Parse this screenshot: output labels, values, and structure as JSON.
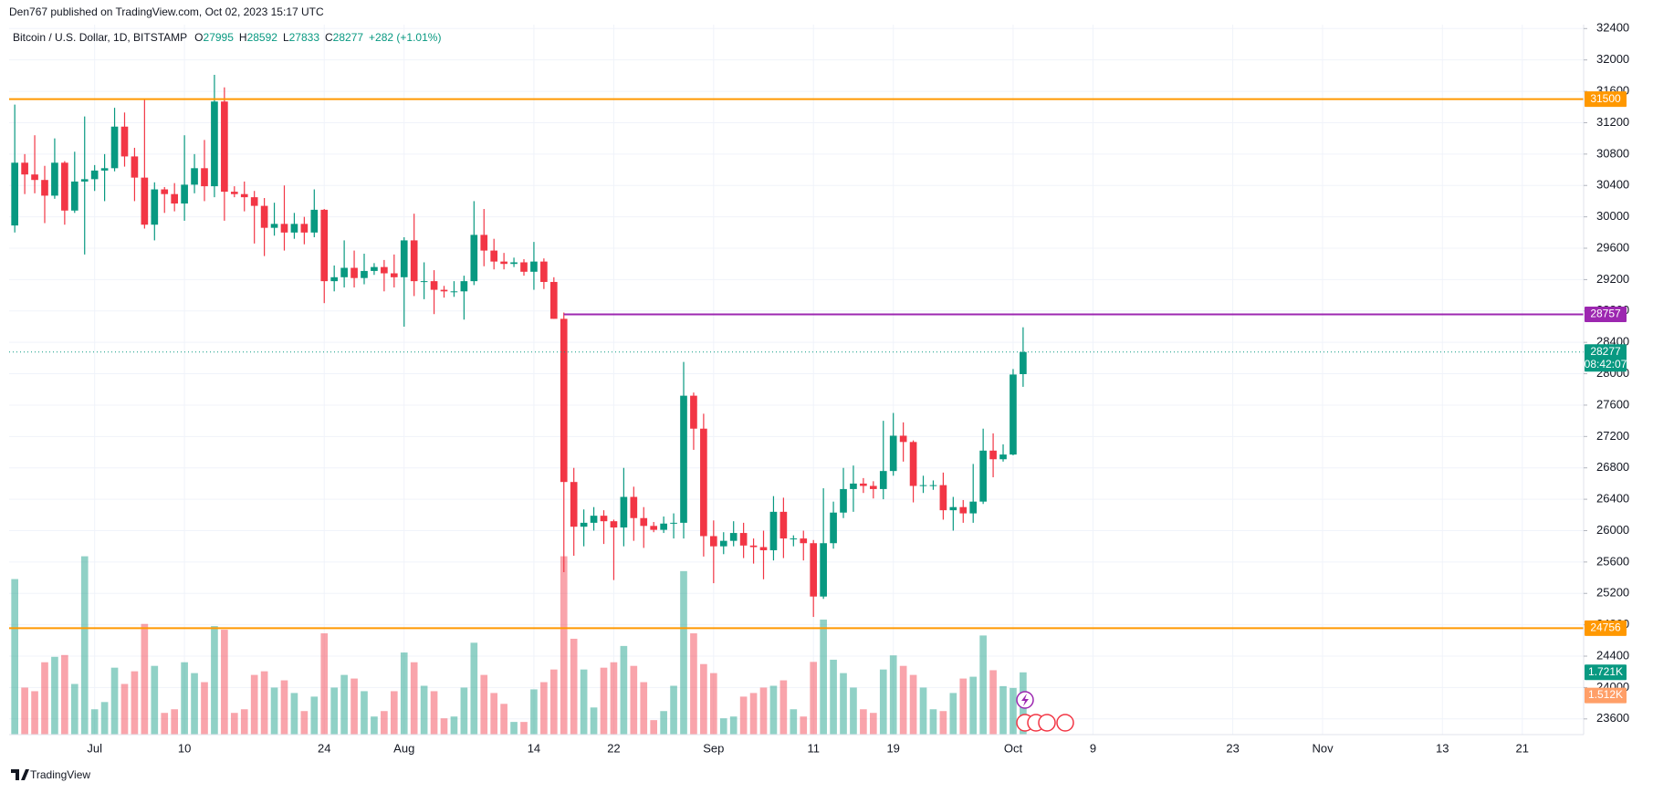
{
  "header": {
    "publisher": "Den767 published on TradingView.com, Oct 02, 2023 15:17 UTC"
  },
  "footer": {
    "brand": "TradingView"
  },
  "chart_data": {
    "type": "candlestick",
    "title": "Bitcoin / U.S. Dollar, 1D, BITSTAMP",
    "ohlc": [
      {
        "label": "O",
        "value": 27995
      },
      {
        "label": "H",
        "value": 28592
      },
      {
        "label": "L",
        "value": 27833
      },
      {
        "label": "C",
        "value": 28277
      }
    ],
    "change": "+282 (+1.01%)",
    "up_color": "#089981",
    "down_color": "#f23645",
    "x": [
      "Jun 23",
      "Jun 24",
      "Jun 25",
      "Jun 26",
      "Jun 27",
      "Jun 28",
      "Jun 29",
      "Jun 30",
      "Jul 1",
      "Jul 2",
      "Jul 3",
      "Jul 4",
      "Jul 5",
      "Jul 6",
      "Jul 7",
      "Jul 8",
      "Jul 9",
      "Jul 10",
      "Jul 11",
      "Jul 12",
      "Jul 13",
      "Jul 14",
      "Jul 15",
      "Jul 16",
      "Jul 17",
      "Jul 18",
      "Jul 19",
      "Jul 20",
      "Jul 21",
      "Jul 22",
      "Jul 23",
      "Jul 24",
      "Jul 25",
      "Jul 26",
      "Jul 27",
      "Jul 28",
      "Jul 29",
      "Jul 30",
      "Jul 31",
      "Aug 1",
      "Aug 2",
      "Aug 3",
      "Aug 4",
      "Aug 5",
      "Aug 6",
      "Aug 7",
      "Aug 8",
      "Aug 9",
      "Aug 10",
      "Aug 11",
      "Aug 12",
      "Aug 13",
      "Aug 14",
      "Aug 15",
      "Aug 16",
      "Aug 17",
      "Aug 18",
      "Aug 19",
      "Aug 20",
      "Aug 21",
      "Aug 22",
      "Aug 23",
      "Aug 24",
      "Aug 25",
      "Aug 26",
      "Aug 27",
      "Aug 28",
      "Aug 29",
      "Aug 30",
      "Aug 31",
      "Sep 1",
      "Sep 2",
      "Sep 3",
      "Sep 4",
      "Sep 5",
      "Sep 6",
      "Sep 7",
      "Sep 8",
      "Sep 9",
      "Sep 10",
      "Sep 11",
      "Sep 12",
      "Sep 13",
      "Sep 14",
      "Sep 15",
      "Sep 16",
      "Sep 17",
      "Sep 18",
      "Sep 19",
      "Sep 20",
      "Sep 21",
      "Sep 22",
      "Sep 23",
      "Sep 24",
      "Sep 25",
      "Sep 26",
      "Sep 27",
      "Sep 28",
      "Sep 29",
      "Sep 30",
      "Oct 1",
      "Oct 2"
    ],
    "open": [
      29890,
      30690,
      30540,
      30470,
      30270,
      30690,
      30080,
      30450,
      30480,
      30590,
      30620,
      31150,
      30770,
      30500,
      29900,
      30350,
      30290,
      30170,
      30410,
      30620,
      30390,
      31470,
      30320,
      30290,
      30250,
      30140,
      29860,
      29910,
      29800,
      29910,
      29800,
      30090,
      29180,
      29230,
      29350,
      29220,
      29310,
      29360,
      29280,
      29230,
      29700,
      29180,
      29180,
      29070,
      29050,
      29050,
      29180,
      29770,
      29570,
      29430,
      29400,
      29420,
      29300,
      29430,
      29170,
      28700,
      26620,
      26050,
      26100,
      26190,
      26120,
      26040,
      26430,
      26160,
      26060,
      26010,
      26090,
      26100,
      27720,
      27300,
      25930,
      25800,
      25870,
      25970,
      25810,
      25790,
      25750,
      26240,
      25900,
      25900,
      25840,
      25160,
      25840,
      26230,
      26530,
      26600,
      26570,
      26530,
      26760,
      27210,
      27130,
      26570,
      26580,
      26580,
      26260,
      26300,
      26220,
      26370,
      27020,
      26910,
      26970,
      27995
    ],
    "high": [
      31430,
      30800,
      31040,
      30650,
      31000,
      30710,
      30830,
      31280,
      30660,
      30800,
      31390,
      31330,
      30880,
      31500,
      30440,
      30380,
      30430,
      31040,
      30800,
      30980,
      31810,
      31650,
      30390,
      30450,
      30330,
      30240,
      30180,
      30400,
      30050,
      30000,
      30350,
      30100,
      29380,
      29700,
      29570,
      29530,
      29410,
      29450,
      29520,
      29740,
      30040,
      29420,
      29320,
      29120,
      29180,
      29250,
      30200,
      30100,
      29720,
      29540,
      29480,
      29460,
      29680,
      29470,
      29230,
      28780,
      26800,
      26270,
      26300,
      26260,
      26140,
      26800,
      26560,
      26300,
      26110,
      26180,
      26220,
      28150,
      27760,
      27490,
      26130,
      25980,
      26120,
      26100,
      25900,
      26000,
      26440,
      26420,
      25940,
      26000,
      25880,
      26540,
      26370,
      26800,
      26830,
      26670,
      26630,
      27400,
      27500,
      27380,
      27150,
      26700,
      26640,
      26740,
      26430,
      26390,
      26850,
      27300,
      27240,
      27100,
      28060,
      28592
    ],
    "low": [
      29800,
      30290,
      30300,
      29920,
      30230,
      29900,
      30050,
      29520,
      30330,
      30200,
      30580,
      30640,
      30200,
      29850,
      29700,
      30050,
      30070,
      29950,
      30300,
      30200,
      30250,
      29950,
      30250,
      30070,
      29660,
      29500,
      29760,
      29570,
      29720,
      29650,
      29740,
      28900,
      29050,
      29100,
      29100,
      29140,
      29260,
      29050,
      29100,
      28600,
      28990,
      28950,
      28760,
      28970,
      28980,
      28690,
      29130,
      29370,
      29330,
      29330,
      29360,
      29250,
      29070,
      29080,
      28700,
      25470,
      25680,
      25800,
      26000,
      25830,
      25370,
      25800,
      25870,
      25780,
      25980,
      25970,
      25900,
      25900,
      27030,
      25670,
      25330,
      25700,
      25800,
      25650,
      25580,
      25380,
      25620,
      25650,
      25800,
      25620,
      24900,
      25130,
      25770,
      26160,
      26240,
      26480,
      26410,
      26400,
      26700,
      26880,
      26360,
      26480,
      26520,
      26140,
      26000,
      26100,
      26100,
      26340,
      26680,
      26880,
      26960,
      27833
    ],
    "close": [
      30690,
      30540,
      30470,
      30270,
      30690,
      30080,
      30450,
      30480,
      30590,
      30620,
      31150,
      30770,
      30500,
      29900,
      30350,
      30290,
      30170,
      30410,
      30620,
      30390,
      31470,
      30320,
      30290,
      30250,
      30140,
      29860,
      29910,
      29800,
      29910,
      29800,
      30090,
      29180,
      29230,
      29350,
      29220,
      29310,
      29360,
      29280,
      29230,
      29700,
      29180,
      29180,
      29070,
      29050,
      29050,
      29180,
      29770,
      29570,
      29430,
      29400,
      29420,
      29300,
      29430,
      29170,
      28700,
      26620,
      26050,
      26100,
      26190,
      26120,
      26040,
      26430,
      26160,
      26060,
      26010,
      26090,
      26100,
      27720,
      27300,
      25930,
      25800,
      25870,
      25970,
      25810,
      25790,
      25750,
      26240,
      25900,
      25900,
      25840,
      25160,
      25840,
      26230,
      26530,
      26600,
      26570,
      26530,
      26760,
      27210,
      27130,
      26570,
      26580,
      26580,
      26260,
      26300,
      26220,
      26370,
      27020,
      26910,
      26970,
      27990,
      28277
    ],
    "volume": [
      4300,
      1300,
      1200,
      2000,
      2150,
      2200,
      1400,
      4930,
      700,
      900,
      1850,
      1400,
      1750,
      3060,
      1900,
      600,
      700,
      2000,
      1700,
      1450,
      3000,
      2900,
      600,
      700,
      1650,
      1750,
      1300,
      1500,
      1150,
      650,
      1050,
      2800,
      1300,
      1650,
      1550,
      1200,
      500,
      650,
      1200,
      2270,
      2000,
      1350,
      1200,
      450,
      500,
      1300,
      2540,
      1650,
      1150,
      850,
      350,
      350,
      1250,
      1450,
      1800,
      4930,
      2650,
      1800,
      750,
      1850,
      2000,
      2450,
      1900,
      1450,
      400,
      650,
      1350,
      4520,
      2800,
      1950,
      1700,
      450,
      500,
      1050,
      1150,
      1300,
      1350,
      1500,
      700,
      500,
      2010,
      3180,
      2070,
      1700,
      1300,
      700,
      600,
      1800,
      2190,
      1900,
      1650,
      1300,
      700,
      650,
      1150,
      1550,
      1600,
      2740,
      1780,
      1340,
      1290,
      1721
    ],
    "last_volume_label": "1.721K",
    "volume_ma": {
      "value": 1512,
      "label": "1.512K"
    },
    "vlim": [
      0,
      5500
    ],
    "levels": [
      {
        "value": 31500,
        "color": "#ff9800"
      },
      {
        "value": 28757,
        "color": "#9c27b0",
        "from": "Aug 17"
      },
      {
        "value": 24756,
        "color": "#ff9800"
      }
    ],
    "last_price": {
      "value": 28277,
      "countdown": "08:42:07"
    },
    "ylim": [
      23400,
      32450
    ],
    "yticks": [
      23600,
      24000,
      24400,
      24800,
      25200,
      25600,
      26000,
      26400,
      26800,
      27200,
      27600,
      28000,
      28400,
      28800,
      29200,
      29600,
      30000,
      30400,
      30800,
      31200,
      31600,
      32000,
      32400
    ],
    "xticks": [
      {
        "value": "Jul 1",
        "label": "Jul"
      },
      {
        "value": "Jul 10",
        "label": "10"
      },
      {
        "value": "Jul 24",
        "label": "24"
      },
      {
        "value": "Aug 1",
        "label": "Aug"
      },
      {
        "value": "Aug 14",
        "label": "14"
      },
      {
        "value": "Aug 22",
        "label": "22"
      },
      {
        "value": "Sep 1",
        "label": "Sep"
      },
      {
        "value": "Sep 11",
        "label": "11"
      },
      {
        "value": "Sep 19",
        "label": "19"
      },
      {
        "value": "Oct 1",
        "label": "Oct"
      },
      {
        "value": "Oct 9",
        "label": "9"
      },
      {
        "value": "Oct 23",
        "label": "23"
      },
      {
        "value": "Nov 1",
        "label": "Nov"
      },
      {
        "value": "Nov 13",
        "label": "13"
      },
      {
        "value": "Nov 21",
        "label": "21"
      }
    ],
    "grid": true
  }
}
